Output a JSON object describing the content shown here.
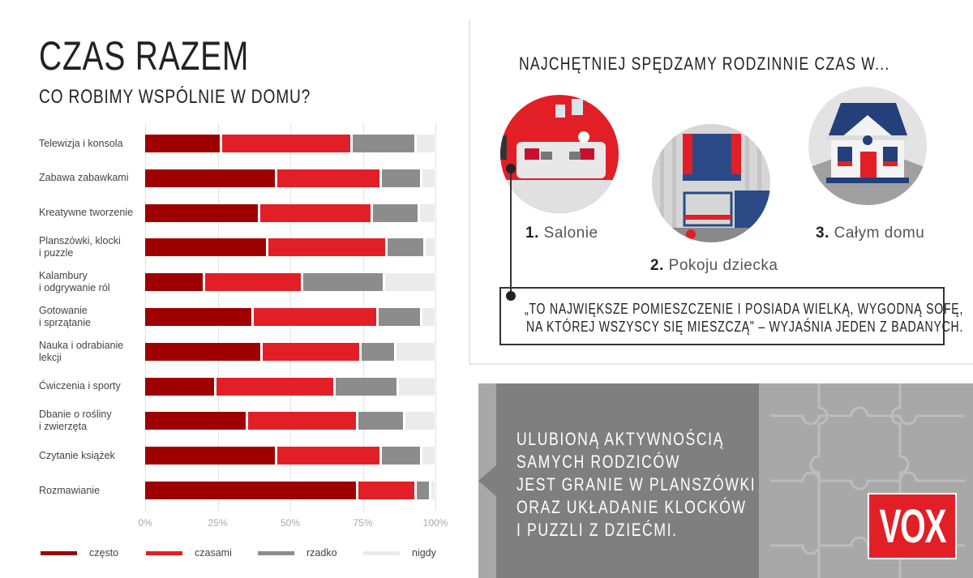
{
  "header": {
    "title": "CZAS RAZEM",
    "subtitle": "CO ROBIMY WSPÓLNIE W DOMU?"
  },
  "chart_data": {
    "type": "bar",
    "orientation": "horizontal",
    "stacked": true,
    "categories": [
      "Telewizja i konsola",
      "Zabawa zabawkami",
      "Kreatywne tworzenie",
      "Planszówki, klocki\ni puzzle",
      "Kalambury\ni odgrywanie ról",
      "Gotowanie\ni sprzątanie",
      "Nauka i odrabianie\nlekcji",
      "Ćwiczenia i sporty",
      "Dbanie o rośliny\ni zwierzęta",
      "Czytanie książek",
      "Rozmawianie"
    ],
    "series": [
      {
        "name": "często",
        "color": "#9e0000",
        "values": [
          26,
          45,
          39,
          42,
          20,
          37,
          40,
          24,
          35,
          45,
          73
        ]
      },
      {
        "name": "czasami",
        "color": "#e21f26",
        "values": [
          45,
          36,
          39,
          41,
          34,
          43,
          34,
          41,
          38,
          36,
          20
        ]
      },
      {
        "name": "rzadko",
        "color": "#8c8c8c",
        "values": [
          22,
          14,
          16,
          13,
          28,
          15,
          12,
          22,
          16,
          14,
          5
        ]
      },
      {
        "name": "nigdy",
        "color": "#ebebeb",
        "values": [
          7,
          5,
          6,
          4,
          18,
          5,
          14,
          13,
          11,
          5,
          2
        ]
      }
    ],
    "xlim": [
      0,
      100
    ],
    "xticks": [
      "0%",
      "25%",
      "50%",
      "75%",
      "100%"
    ],
    "grid": true,
    "legend": "bottom"
  },
  "right": {
    "heading": "NAJCHĘTNIEJ SPĘDZAMY RODZINNIE CZAS W...",
    "places": [
      {
        "num": "1.",
        "label": "Salonie",
        "icon": "living-room-illustration"
      },
      {
        "num": "2.",
        "label": "Pokoju dziecka",
        "icon": "kids-room-illustration"
      },
      {
        "num": "3.",
        "label": "Całym domu",
        "icon": "house-illustration"
      }
    ],
    "quote_lines": [
      "„TO NAJWIĘKSZE POMIESZCZENIE I POSIADA WIELKĄ, WYGODNĄ SOFĘ,",
      "NA KTÓREJ WSZYSCY SIĘ MIESZCZĄ\" – WYJAŚNIA JEDEN Z BADANYCH."
    ]
  },
  "bottom": {
    "lines": [
      "ULUBIONĄ AKTYWNOŚCIĄ",
      "SAMYCH RODZICÓW",
      "JEST GRANIE W PLANSZÓWKI",
      "ORAZ UKŁADANIE KLOCKÓW",
      "I PUZZLI Z DZIEĆMI."
    ],
    "logo": "VOX"
  }
}
